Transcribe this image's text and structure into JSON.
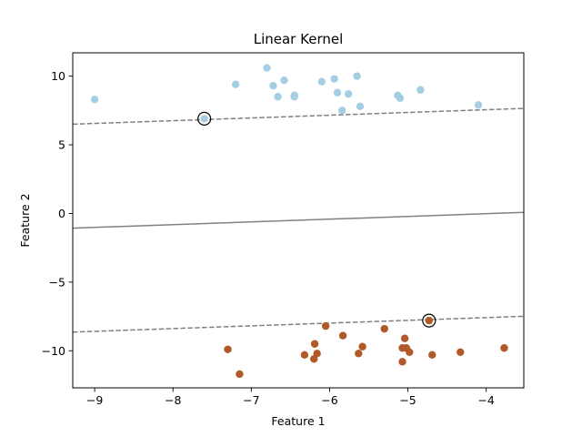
{
  "chart_data": {
    "type": "scatter",
    "title": "Linear Kernel",
    "xlabel": "Feature 1",
    "ylabel": "Feature 2",
    "xlim": [
      -9.28,
      -3.52
    ],
    "ylim": [
      -12.7,
      11.7
    ],
    "xticks": [
      -9,
      -8,
      -7,
      -6,
      -5,
      -4
    ],
    "yticks": [
      -10,
      -5,
      0,
      5,
      10
    ],
    "xtick_labels": [
      "−9",
      "−8",
      "−7",
      "−6",
      "−5",
      "−4"
    ],
    "ytick_labels": [
      "−10",
      "−5",
      "0",
      "5",
      "10"
    ],
    "grid": false,
    "legend": "none",
    "series": [
      {
        "class": "upper",
        "color": "#a6cee3",
        "points": [
          [
            -9.0,
            8.3
          ],
          [
            -7.2,
            9.4
          ],
          [
            -6.8,
            10.6
          ],
          [
            -6.72,
            9.3
          ],
          [
            -6.66,
            8.5
          ],
          [
            -6.58,
            9.7
          ],
          [
            -6.45,
            8.6
          ],
          [
            -6.45,
            8.5
          ],
          [
            -6.1,
            9.6
          ],
          [
            -5.94,
            9.8
          ],
          [
            -5.9,
            8.8
          ],
          [
            -5.84,
            7.5
          ],
          [
            -5.76,
            8.7
          ],
          [
            -5.65,
            10.0
          ],
          [
            -5.61,
            7.8
          ],
          [
            -5.13,
            8.6
          ],
          [
            -5.1,
            8.4
          ],
          [
            -4.84,
            9.0
          ],
          [
            -4.1,
            7.9
          ],
          [
            -7.6,
            6.9
          ]
        ]
      },
      {
        "class": "lower",
        "color": "#b15928",
        "points": [
          [
            -7.3,
            -9.9
          ],
          [
            -7.15,
            -11.7
          ],
          [
            -6.32,
            -10.3
          ],
          [
            -6.2,
            -10.6
          ],
          [
            -6.19,
            -9.5
          ],
          [
            -6.16,
            -10.2
          ],
          [
            -6.05,
            -8.2
          ],
          [
            -5.83,
            -8.9
          ],
          [
            -5.63,
            -10.2
          ],
          [
            -5.58,
            -9.7
          ],
          [
            -5.3,
            -8.4
          ],
          [
            -5.07,
            -9.8
          ],
          [
            -5.07,
            -10.8
          ],
          [
            -5.04,
            -9.1
          ],
          [
            -5.02,
            -9.8
          ],
          [
            -4.98,
            -10.1
          ],
          [
            -4.69,
            -10.3
          ],
          [
            -4.33,
            -10.1
          ],
          [
            -3.77,
            -9.8
          ],
          [
            -4.73,
            -7.8
          ]
        ]
      }
    ],
    "support_vectors": [
      [
        -7.6,
        6.9
      ],
      [
        -4.73,
        -7.8
      ]
    ],
    "decision_boundary": {
      "x": [
        -9.28,
        -3.52
      ],
      "y": [
        -1.07,
        0.08
      ]
    },
    "margin_upper": {
      "x": [
        -9.28,
        -3.52
      ],
      "y": [
        6.5,
        7.65
      ]
    },
    "margin_lower": {
      "x": [
        -9.28,
        -3.52
      ],
      "y": [
        -8.64,
        -7.49
      ]
    },
    "line_color": "#808080",
    "support_vector_edge": "#000000"
  }
}
